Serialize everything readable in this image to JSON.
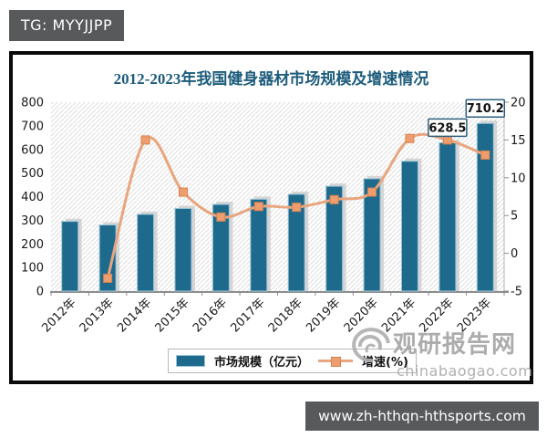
{
  "badge": {
    "label": "TG: MYYJJPP"
  },
  "chart_data": {
    "type": "bar",
    "combo": "bar + line (dual axis)",
    "title": "2012-2023年我国健身器材市场规模及增速情况",
    "categories": [
      "2012年",
      "2013年",
      "2014年",
      "2015年",
      "2016年",
      "2017年",
      "2018年",
      "2019年",
      "2020年",
      "2021年",
      "2022年",
      "2023年"
    ],
    "series": [
      {
        "name": "市场规模（亿元）",
        "chart_type": "bar",
        "axis": "left",
        "color": "#1e6a8d",
        "values": [
          295,
          280,
          325,
          350,
          367,
          389,
          410,
          444,
          476,
          550,
          628.5,
          710.2
        ]
      },
      {
        "name": "增速(%)",
        "chart_type": "line",
        "axis": "right",
        "color": "#e8a57e",
        "marker_color": "#ee9d6f",
        "values": [
          null,
          -3.3,
          15.0,
          8.1,
          4.8,
          6.2,
          6.1,
          7.1,
          8.1,
          15.2,
          15.0,
          13.0
        ]
      }
    ],
    "data_labels": [
      {
        "category": "2022年",
        "text": "628.5"
      },
      {
        "category": "2023年",
        "text": "710.2"
      }
    ],
    "left_axis": {
      "min": 0,
      "max": 800,
      "ticks": [
        0,
        100,
        200,
        300,
        400,
        500,
        600,
        700,
        800
      ]
    },
    "right_axis": {
      "min": -5,
      "max": 20,
      "ticks": [
        -5,
        0,
        5,
        10,
        15,
        20
      ]
    },
    "legend_position": "bottom",
    "grid": false,
    "plot_background": "white with light diagonal hatch",
    "title_color": "#1d5c7c"
  },
  "colors": {
    "bar": "#1e6a8d",
    "bar_outline": "#9cc5d8",
    "bar_shadow": "#c9c9c9",
    "line": "#e8a57e",
    "marker": "#ee9d6f",
    "marker_outline": "#d8834f",
    "label_box_border": "#2d5f80",
    "badge_background": "#58595b",
    "watermark_gray": "#a9a9a9"
  },
  "watermark": {
    "name": "观研报告网",
    "domain": "chinabaogao.com",
    "logo": "swirl-logo-icon"
  },
  "footer": {
    "url": "www.zh-hthqn-hthsports.com"
  }
}
